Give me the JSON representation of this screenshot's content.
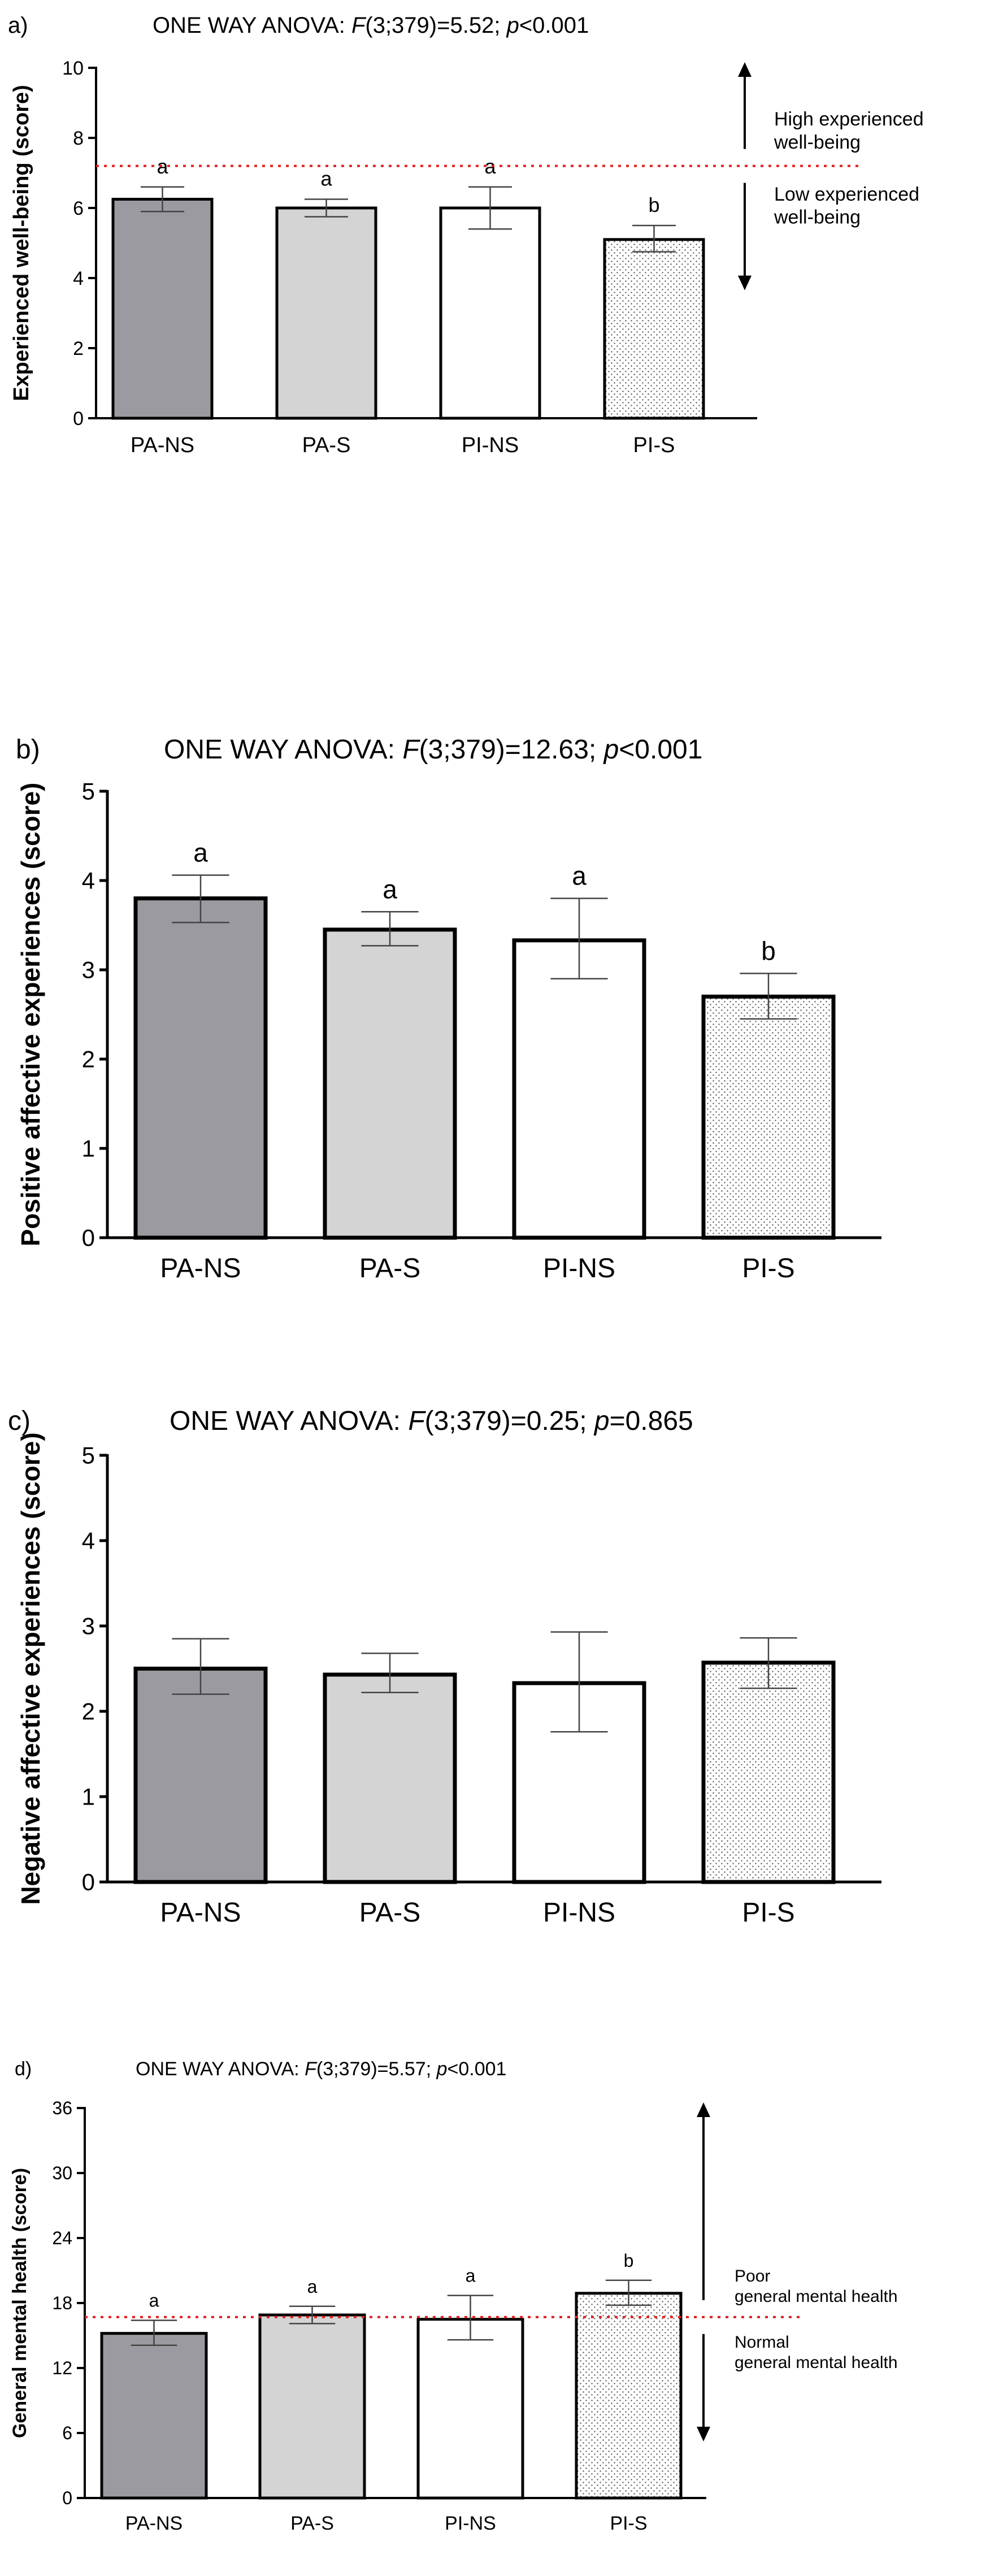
{
  "chart_data": [
    {
      "type": "bar",
      "panel_label": "a)",
      "title_prefix": "ONE WAY ANOVA: ",
      "title_F": "F",
      "title_mid": "(3;379)=5.52; ",
      "title_p": "p",
      "title_end": "<0.001",
      "categories": [
        "PA-NS",
        "PA-S",
        "PI-NS",
        "PI-S"
      ],
      "values": [
        6.25,
        6.0,
        6.0,
        5.1
      ],
      "err_low": [
        5.9,
        5.75,
        5.4,
        4.75
      ],
      "err_high": [
        6.6,
        6.25,
        6.6,
        5.5
      ],
      "letters": [
        "a",
        "a",
        "a",
        "b"
      ],
      "ylabel": "Experienced well-being (score)",
      "ylim": [
        0,
        10
      ],
      "yticks": [
        0,
        2,
        4,
        6,
        8,
        10
      ],
      "reference_line": 7.2,
      "annot_high": [
        "High experienced",
        "well-being"
      ],
      "annot_low": [
        "Low experienced",
        "well-being"
      ]
    },
    {
      "type": "bar",
      "panel_label": "b)",
      "title_prefix": "ONE WAY ANOVA: ",
      "title_F": "F",
      "title_mid": "(3;379)=12.63; ",
      "title_p": "p",
      "title_end": "<0.001",
      "categories": [
        "PA-NS",
        "PA-S",
        "PI-NS",
        "PI-S"
      ],
      "values": [
        3.8,
        3.45,
        3.33,
        2.7
      ],
      "err_low": [
        3.53,
        3.27,
        2.9,
        2.45
      ],
      "err_high": [
        4.06,
        3.65,
        3.8,
        2.96
      ],
      "letters": [
        "a",
        "a",
        "a",
        "b"
      ],
      "ylabel": "Positive affective experiences (score)",
      "ylim": [
        0,
        5
      ],
      "yticks": [
        0,
        1,
        2,
        3,
        4,
        5
      ]
    },
    {
      "type": "bar",
      "panel_label": "c)",
      "title_prefix": "ONE WAY ANOVA: ",
      "title_F": "F",
      "title_mid": "(3;379)=0.25; ",
      "title_p": "p",
      "title_end": "=0.865",
      "categories": [
        "PA-NS",
        "PA-S",
        "PI-NS",
        "PI-S"
      ],
      "values": [
        2.5,
        2.43,
        2.33,
        2.57
      ],
      "err_low": [
        2.2,
        2.22,
        1.76,
        2.27
      ],
      "err_high": [
        2.85,
        2.68,
        2.93,
        2.86
      ],
      "letters": [
        "",
        "",
        "",
        ""
      ],
      "ylabel": "Negative affective experiences (score)",
      "ylim": [
        0,
        5
      ],
      "yticks": [
        0,
        1,
        2,
        3,
        4,
        5
      ]
    },
    {
      "type": "bar",
      "panel_label": "d)",
      "title_prefix": "ONE WAY ANOVA: ",
      "title_F": "F",
      "title_mid": "(3;379)=5.57; ",
      "title_p": "p",
      "title_end": "<0.001",
      "categories": [
        "PA-NS",
        "PA-S",
        "PI-NS",
        "PI-S"
      ],
      "values": [
        15.2,
        16.9,
        16.5,
        18.9
      ],
      "err_low": [
        14.1,
        16.1,
        14.6,
        17.8
      ],
      "err_high": [
        16.4,
        17.7,
        18.7,
        20.1
      ],
      "letters": [
        "a",
        "a",
        "a",
        "b"
      ],
      "ylabel": "General mental health (score)",
      "ylim": [
        0,
        36
      ],
      "yticks": [
        0,
        6,
        12,
        18,
        24,
        30,
        36
      ],
      "reference_line": 16.7,
      "annot_high": [
        "Poor",
        "general mental health"
      ],
      "annot_low": [
        "Normal",
        "general mental health"
      ]
    }
  ],
  "colors": {
    "bar_fills": [
      "#9a9aa0",
      "#d4d4d4",
      "#ffffff",
      "#ffffff"
    ],
    "reference_line": "#e02020",
    "axis": "#000000",
    "dots": "#555555"
  }
}
